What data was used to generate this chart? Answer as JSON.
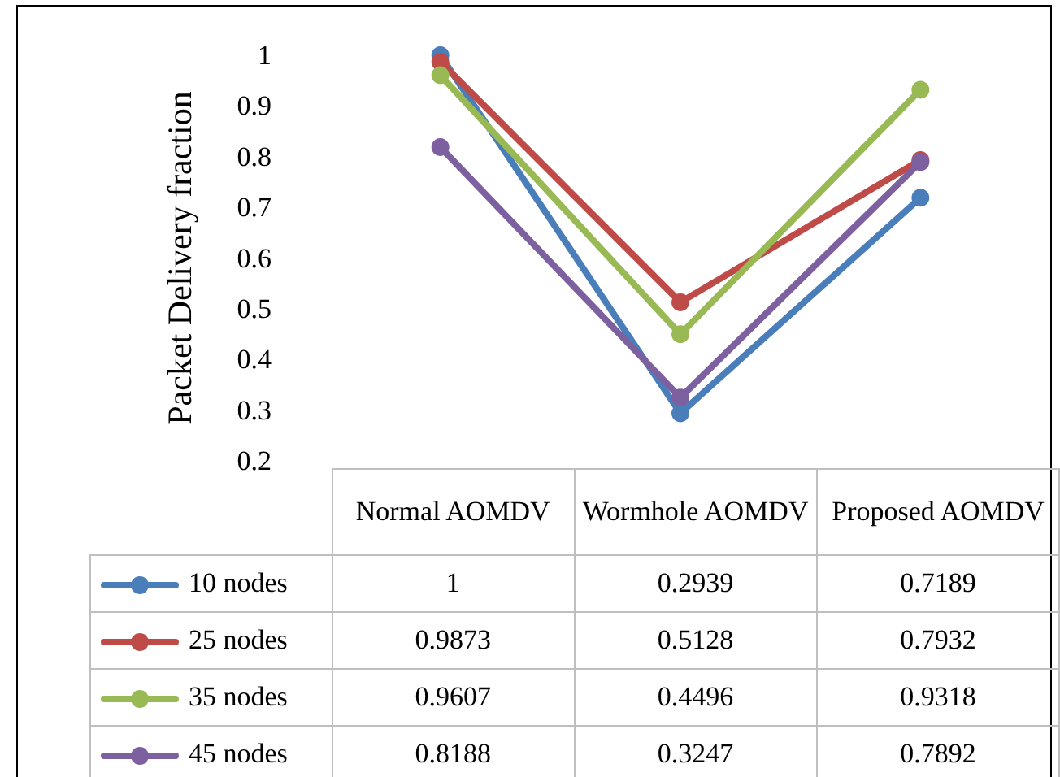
{
  "chart_data": {
    "type": "line",
    "ylabel": "Packet Delivery fraction",
    "categories": [
      "Normal AOMDV",
      "Wormhole AOMDV",
      "Proposed AOMDV"
    ],
    "series": [
      {
        "name": "10 nodes",
        "color": "#4a7ebb",
        "values": [
          1,
          0.2939,
          0.7189
        ]
      },
      {
        "name": "25 nodes",
        "color": "#be4b48",
        "values": [
          0.9873,
          0.5128,
          0.7932
        ]
      },
      {
        "name": "35 nodes",
        "color": "#98b954",
        "values": [
          0.9607,
          0.4496,
          0.9318
        ]
      },
      {
        "name": "45 nodes",
        "color": "#7d60a0",
        "values": [
          0.8188,
          0.3247,
          0.7892
        ]
      }
    ],
    "ylim": [
      0.2,
      1
    ],
    "yticks": [
      0.2,
      0.3,
      0.4,
      0.5,
      0.6,
      0.7,
      0.8,
      0.9,
      1
    ],
    "grid": false,
    "legend": "left",
    "marker": "circle",
    "line_style": "solid",
    "data_labels": true
  }
}
